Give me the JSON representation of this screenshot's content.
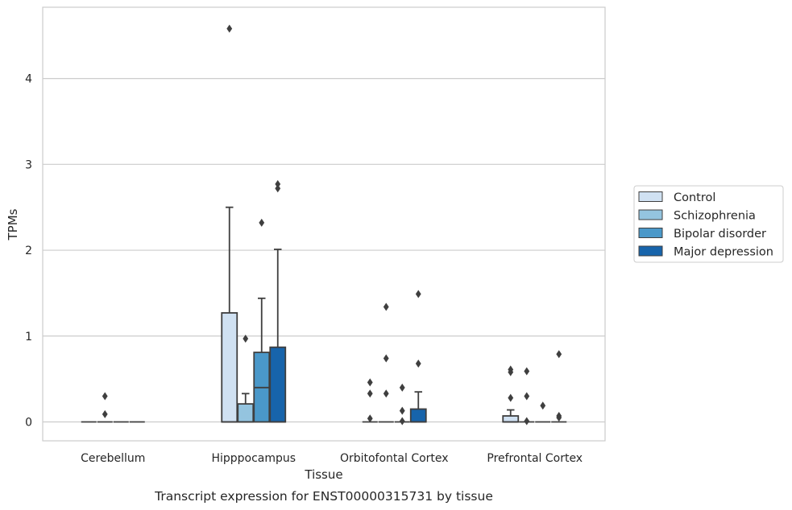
{
  "chart_data": {
    "type": "box",
    "title": "",
    "caption": "Transcript expression for ENST00000315731 by tissue",
    "xlabel": "Tissue",
    "ylabel": "TPMs",
    "ylim": [
      -0.22,
      4.83
    ],
    "yticks": [
      0,
      1,
      2,
      3,
      4
    ],
    "ytick_labels": [
      "0",
      "1",
      "2",
      "3",
      "4"
    ],
    "grid": "horizontal",
    "legend_position": "right",
    "categories": [
      "Cerebellum",
      "Hipppocampus",
      "Orbitofontal Cortex",
      "Prefrontal Cortex"
    ],
    "series": [
      {
        "name": "Control",
        "color": "#d0e1f2",
        "boxes": [
          {
            "q1": 0,
            "median": 0,
            "q3": 0,
            "whislo": 0,
            "whishi": 0,
            "fliers": []
          },
          {
            "q1": 0,
            "median": 0,
            "q3": 1.27,
            "whislo": 0,
            "whishi": 2.5,
            "fliers": []
          },
          {
            "q1": 0,
            "median": 0,
            "q3": 0,
            "whislo": 0,
            "whishi": 0,
            "fliers": [
              0.46,
              0.33,
              0.04
            ]
          },
          {
            "q1": 0,
            "median": 0,
            "q3": 0.07,
            "whislo": 0,
            "whishi": 0.14,
            "fliers": [
              0.61,
              0.58,
              0.28
            ]
          }
        ]
      },
      {
        "name": "Schizophrenia",
        "color": "#94c4df",
        "boxes": [
          {
            "q1": 0,
            "median": 0,
            "q3": 0,
            "whislo": 0,
            "whishi": 0,
            "fliers": [
              0.3,
              0.09
            ]
          },
          {
            "q1": 0,
            "median": 0,
            "q3": 0.21,
            "whislo": 0,
            "whishi": 0.33,
            "fliers": [
              0.97
            ]
          },
          {
            "q1": 0,
            "median": 0,
            "q3": 0,
            "whislo": 0,
            "whishi": 0,
            "fliers": [
              1.34,
              0.74,
              0.33
            ]
          },
          {
            "q1": 0,
            "median": 0,
            "q3": 0,
            "whislo": 0,
            "whishi": 0,
            "fliers": [
              0.59,
              0.3,
              0.01
            ]
          }
        ]
      },
      {
        "name": "Bipolar disorder",
        "color": "#4a98c9",
        "boxes": [
          {
            "q1": 0,
            "median": 0,
            "q3": 0,
            "whislo": 0,
            "whishi": 0,
            "fliers": []
          },
          {
            "q1": 0,
            "median": 0.4,
            "q3": 0.81,
            "whislo": 0,
            "whishi": 1.44,
            "fliers": [
              2.32
            ]
          },
          {
            "q1": 0,
            "median": 0,
            "q3": 0,
            "whislo": 0,
            "whishi": 0,
            "fliers": [
              0.4,
              0.13,
              0.01
            ]
          },
          {
            "q1": 0,
            "median": 0,
            "q3": 0,
            "whislo": 0,
            "whishi": 0,
            "fliers": [
              0.19
            ]
          }
        ]
      },
      {
        "name": "Major depression",
        "color": "#1764ab",
        "boxes": [
          {
            "q1": 0,
            "median": 0,
            "q3": 0,
            "whislo": 0,
            "whishi": 0,
            "fliers": []
          },
          {
            "q1": 0,
            "median": 0,
            "q3": 0.87,
            "whislo": 0,
            "whishi": 2.01,
            "fliers": [
              2.77,
              2.72
            ]
          },
          {
            "q1": 0,
            "median": 0,
            "q3": 0.15,
            "whislo": 0,
            "whishi": 0.35,
            "fliers": [
              1.49,
              0.68
            ]
          },
          {
            "q1": 0,
            "median": 0,
            "q3": 0,
            "whislo": 0,
            "whishi": 0,
            "fliers": [
              0.79,
              0.07,
              0.05
            ]
          }
        ]
      }
    ],
    "extra_fliers": [
      {
        "category": 1,
        "series": 0,
        "values": [
          4.58
        ]
      }
    ],
    "style": {
      "grid_color": "#cccccc",
      "frame_color": "#cccccc",
      "line_color": "#3f3f3f",
      "background": "#ffffff"
    }
  }
}
